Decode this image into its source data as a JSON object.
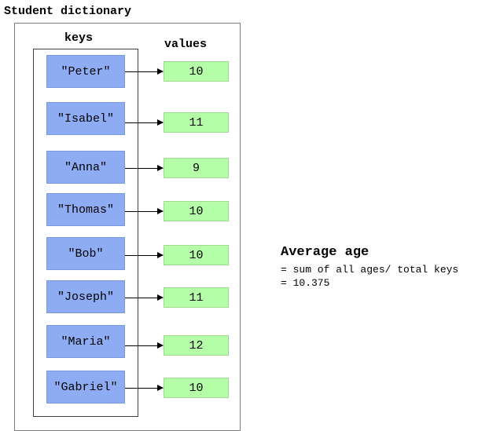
{
  "title": "Student dictionary",
  "keys_header": "keys",
  "values_header": "values",
  "entries": [
    {
      "key": "\"Peter\"",
      "value": "10"
    },
    {
      "key": "\"Isabel\"",
      "value": "11"
    },
    {
      "key": "\"Anna\"",
      "value": "9"
    },
    {
      "key": "\"Thomas\"",
      "value": "10"
    },
    {
      "key": "\"Bob\"",
      "value": "10"
    },
    {
      "key": "\"Joseph\"",
      "value": "11"
    },
    {
      "key": "\"Maria\"",
      "value": "12"
    },
    {
      "key": "\"Gabriel\"",
      "value": "10"
    }
  ],
  "average": {
    "title": "Average age",
    "formula": "= sum of all ages/ total keys",
    "result": "= 10.375"
  },
  "colors": {
    "key_fill": "#8eacf3",
    "value_fill": "#b5ffa8",
    "arrow": "#000000"
  }
}
